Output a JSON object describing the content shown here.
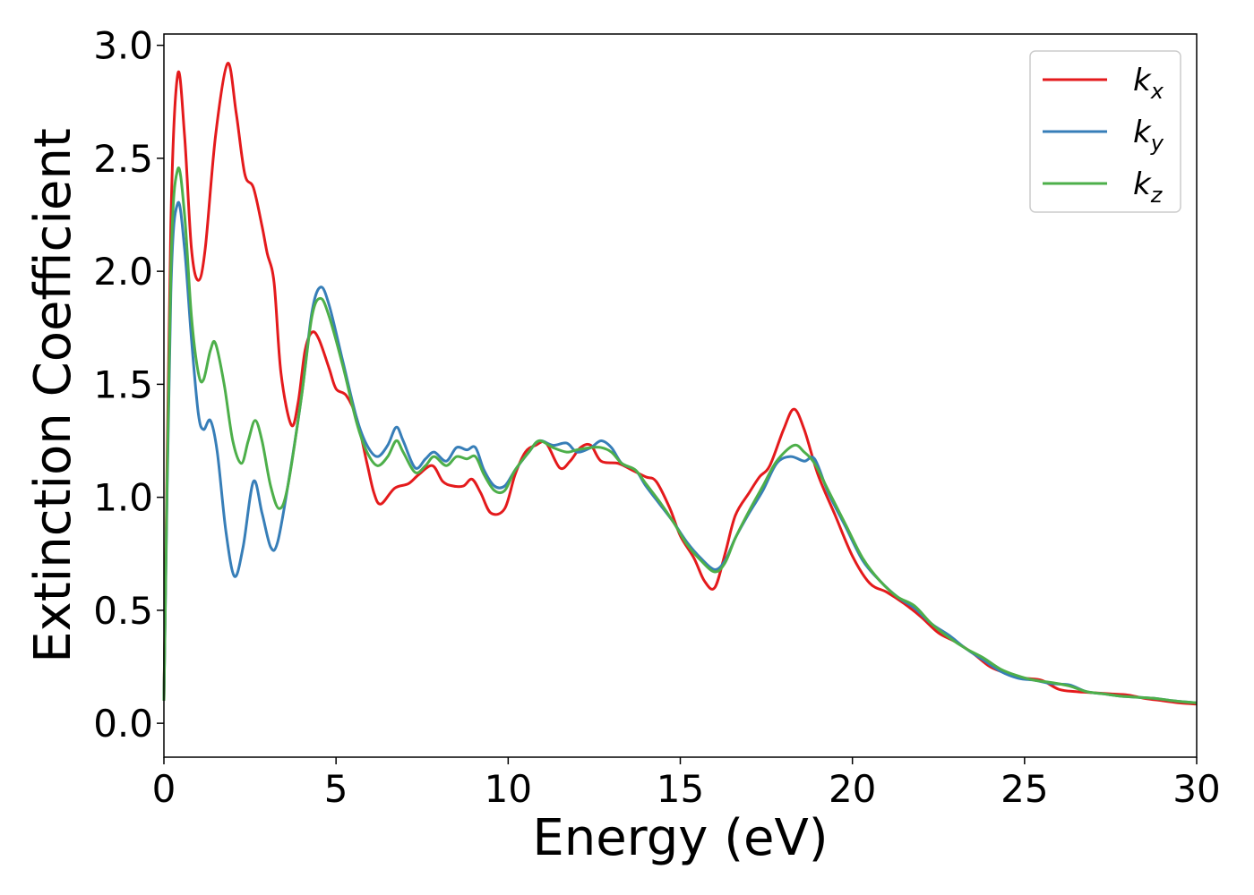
{
  "chart_data": {
    "type": "line",
    "title": "",
    "xlabel": "Energy (eV)",
    "ylabel": "Extinction Coefficient",
    "xlim": [
      0,
      30
    ],
    "ylim": [
      -0.15,
      3.05
    ],
    "xticks": [
      0,
      5,
      10,
      15,
      20,
      25,
      30
    ],
    "xtick_labels": [
      "0",
      "5",
      "10",
      "15",
      "20",
      "25",
      "30"
    ],
    "yticks": [
      0.0,
      0.5,
      1.0,
      1.5,
      2.0,
      2.5,
      3.0
    ],
    "ytick_labels": [
      "0.0",
      "0.5",
      "1.0",
      "1.5",
      "2.0",
      "2.5",
      "3.0"
    ],
    "grid": false,
    "legend_position": "top-right",
    "series": [
      {
        "name": "kx",
        "label_main": "k",
        "label_sub": "x",
        "color": "#e41a1c",
        "points": [
          [
            0,
            0.1
          ],
          [
            0.2,
            2.2
          ],
          [
            0.4,
            2.87
          ],
          [
            0.6,
            2.6
          ],
          [
            0.8,
            2.1
          ],
          [
            1.0,
            1.96
          ],
          [
            1.2,
            2.1
          ],
          [
            1.5,
            2.6
          ],
          [
            1.85,
            2.92
          ],
          [
            2.1,
            2.7
          ],
          [
            2.35,
            2.43
          ],
          [
            2.6,
            2.37
          ],
          [
            2.85,
            2.2
          ],
          [
            3.0,
            2.08
          ],
          [
            3.2,
            1.95
          ],
          [
            3.4,
            1.55
          ],
          [
            3.7,
            1.32
          ],
          [
            3.9,
            1.42
          ],
          [
            4.1,
            1.65
          ],
          [
            4.3,
            1.73
          ],
          [
            4.5,
            1.7
          ],
          [
            4.8,
            1.57
          ],
          [
            5.0,
            1.48
          ],
          [
            5.3,
            1.45
          ],
          [
            5.6,
            1.35
          ],
          [
            5.9,
            1.15
          ],
          [
            6.1,
            1.02
          ],
          [
            6.3,
            0.97
          ],
          [
            6.7,
            1.04
          ],
          [
            7.1,
            1.06
          ],
          [
            7.4,
            1.1
          ],
          [
            7.8,
            1.14
          ],
          [
            8.1,
            1.07
          ],
          [
            8.4,
            1.05
          ],
          [
            8.7,
            1.05
          ],
          [
            8.95,
            1.08
          ],
          [
            9.2,
            1.02
          ],
          [
            9.5,
            0.93
          ],
          [
            9.9,
            0.95
          ],
          [
            10.2,
            1.1
          ],
          [
            10.5,
            1.2
          ],
          [
            10.8,
            1.23
          ],
          [
            11.1,
            1.24
          ],
          [
            11.5,
            1.13
          ],
          [
            11.8,
            1.16
          ],
          [
            12.1,
            1.22
          ],
          [
            12.4,
            1.23
          ],
          [
            12.7,
            1.16
          ],
          [
            13.2,
            1.15
          ],
          [
            13.6,
            1.12
          ],
          [
            14.0,
            1.09
          ],
          [
            14.3,
            1.07
          ],
          [
            14.7,
            0.95
          ],
          [
            15.0,
            0.83
          ],
          [
            15.4,
            0.73
          ],
          [
            15.7,
            0.63
          ],
          [
            16.0,
            0.6
          ],
          [
            16.3,
            0.75
          ],
          [
            16.6,
            0.92
          ],
          [
            17.0,
            1.02
          ],
          [
            17.3,
            1.09
          ],
          [
            17.6,
            1.14
          ],
          [
            18.0,
            1.3
          ],
          [
            18.3,
            1.39
          ],
          [
            18.6,
            1.3
          ],
          [
            19.0,
            1.1
          ],
          [
            19.5,
            0.92
          ],
          [
            20.0,
            0.74
          ],
          [
            20.5,
            0.62
          ],
          [
            21.0,
            0.58
          ],
          [
            21.5,
            0.53
          ],
          [
            22.0,
            0.47
          ],
          [
            22.5,
            0.4
          ],
          [
            23.0,
            0.36
          ],
          [
            23.5,
            0.31
          ],
          [
            24.0,
            0.25
          ],
          [
            24.5,
            0.22
          ],
          [
            25.0,
            0.2
          ],
          [
            25.5,
            0.19
          ],
          [
            26.0,
            0.15
          ],
          [
            26.5,
            0.14
          ],
          [
            27.0,
            0.135
          ],
          [
            27.5,
            0.13
          ],
          [
            28.0,
            0.125
          ],
          [
            28.5,
            0.11
          ],
          [
            29.0,
            0.1
          ],
          [
            29.5,
            0.09
          ],
          [
            30.0,
            0.085
          ]
        ]
      },
      {
        "name": "ky",
        "label_main": "k",
        "label_sub": "y",
        "color": "#377eb8",
        "points": [
          [
            0,
            0.1
          ],
          [
            0.2,
            1.9
          ],
          [
            0.4,
            2.3
          ],
          [
            0.6,
            2.1
          ],
          [
            0.8,
            1.7
          ],
          [
            1.0,
            1.37
          ],
          [
            1.15,
            1.3
          ],
          [
            1.35,
            1.34
          ],
          [
            1.55,
            1.2
          ],
          [
            1.8,
            0.85
          ],
          [
            2.05,
            0.65
          ],
          [
            2.3,
            0.78
          ],
          [
            2.6,
            1.07
          ],
          [
            2.85,
            0.93
          ],
          [
            3.1,
            0.78
          ],
          [
            3.3,
            0.8
          ],
          [
            3.6,
            1.05
          ],
          [
            4.0,
            1.45
          ],
          [
            4.3,
            1.82
          ],
          [
            4.55,
            1.93
          ],
          [
            4.8,
            1.85
          ],
          [
            5.2,
            1.6
          ],
          [
            5.6,
            1.35
          ],
          [
            5.9,
            1.23
          ],
          [
            6.2,
            1.18
          ],
          [
            6.5,
            1.23
          ],
          [
            6.75,
            1.31
          ],
          [
            6.95,
            1.25
          ],
          [
            7.3,
            1.13
          ],
          [
            7.6,
            1.17
          ],
          [
            7.85,
            1.2
          ],
          [
            8.2,
            1.16
          ],
          [
            8.5,
            1.22
          ],
          [
            8.8,
            1.21
          ],
          [
            9.05,
            1.22
          ],
          [
            9.3,
            1.12
          ],
          [
            9.6,
            1.05
          ],
          [
            9.9,
            1.05
          ],
          [
            10.2,
            1.12
          ],
          [
            10.6,
            1.2
          ],
          [
            10.9,
            1.25
          ],
          [
            11.3,
            1.23
          ],
          [
            11.7,
            1.24
          ],
          [
            12.0,
            1.2
          ],
          [
            12.4,
            1.22
          ],
          [
            12.7,
            1.25
          ],
          [
            13.0,
            1.22
          ],
          [
            13.3,
            1.15
          ],
          [
            13.7,
            1.12
          ],
          [
            14.0,
            1.05
          ],
          [
            14.4,
            0.97
          ],
          [
            14.8,
            0.89
          ],
          [
            15.2,
            0.8
          ],
          [
            15.6,
            0.73
          ],
          [
            16.0,
            0.68
          ],
          [
            16.3,
            0.72
          ],
          [
            16.6,
            0.82
          ],
          [
            17.0,
            0.93
          ],
          [
            17.4,
            1.03
          ],
          [
            17.8,
            1.15
          ],
          [
            18.2,
            1.18
          ],
          [
            18.6,
            1.16
          ],
          [
            18.9,
            1.17
          ],
          [
            19.3,
            1.02
          ],
          [
            19.8,
            0.87
          ],
          [
            20.3,
            0.72
          ],
          [
            20.8,
            0.63
          ],
          [
            21.3,
            0.56
          ],
          [
            21.8,
            0.51
          ],
          [
            22.3,
            0.44
          ],
          [
            22.8,
            0.39
          ],
          [
            23.3,
            0.33
          ],
          [
            23.8,
            0.28
          ],
          [
            24.3,
            0.23
          ],
          [
            24.8,
            0.2
          ],
          [
            25.3,
            0.19
          ],
          [
            25.8,
            0.175
          ],
          [
            26.3,
            0.17
          ],
          [
            26.8,
            0.14
          ],
          [
            27.3,
            0.13
          ],
          [
            27.8,
            0.12
          ],
          [
            28.3,
            0.115
          ],
          [
            28.8,
            0.11
          ],
          [
            29.3,
            0.1
          ],
          [
            30.0,
            0.09
          ]
        ]
      },
      {
        "name": "kz",
        "label_main": "k",
        "label_sub": "z",
        "color": "#4daf4a",
        "points": [
          [
            0,
            0.1
          ],
          [
            0.2,
            2.0
          ],
          [
            0.4,
            2.45
          ],
          [
            0.6,
            2.25
          ],
          [
            0.8,
            1.8
          ],
          [
            1.0,
            1.55
          ],
          [
            1.15,
            1.52
          ],
          [
            1.35,
            1.65
          ],
          [
            1.5,
            1.68
          ],
          [
            1.75,
            1.5
          ],
          [
            2.0,
            1.25
          ],
          [
            2.25,
            1.15
          ],
          [
            2.45,
            1.25
          ],
          [
            2.65,
            1.34
          ],
          [
            2.85,
            1.25
          ],
          [
            3.1,
            1.05
          ],
          [
            3.35,
            0.95
          ],
          [
            3.6,
            1.05
          ],
          [
            4.0,
            1.45
          ],
          [
            4.3,
            1.8
          ],
          [
            4.55,
            1.88
          ],
          [
            4.8,
            1.8
          ],
          [
            5.2,
            1.58
          ],
          [
            5.6,
            1.33
          ],
          [
            5.9,
            1.2
          ],
          [
            6.2,
            1.14
          ],
          [
            6.5,
            1.18
          ],
          [
            6.75,
            1.25
          ],
          [
            6.95,
            1.2
          ],
          [
            7.3,
            1.11
          ],
          [
            7.6,
            1.14
          ],
          [
            7.85,
            1.18
          ],
          [
            8.2,
            1.14
          ],
          [
            8.5,
            1.18
          ],
          [
            8.8,
            1.17
          ],
          [
            9.05,
            1.18
          ],
          [
            9.3,
            1.1
          ],
          [
            9.6,
            1.03
          ],
          [
            9.9,
            1.03
          ],
          [
            10.2,
            1.12
          ],
          [
            10.6,
            1.2
          ],
          [
            10.9,
            1.25
          ],
          [
            11.3,
            1.22
          ],
          [
            11.7,
            1.2
          ],
          [
            12.0,
            1.21
          ],
          [
            12.4,
            1.22
          ],
          [
            12.7,
            1.22
          ],
          [
            13.0,
            1.2
          ],
          [
            13.3,
            1.15
          ],
          [
            13.7,
            1.12
          ],
          [
            14.0,
            1.06
          ],
          [
            14.4,
            0.98
          ],
          [
            14.8,
            0.89
          ],
          [
            15.2,
            0.79
          ],
          [
            15.6,
            0.72
          ],
          [
            16.0,
            0.67
          ],
          [
            16.3,
            0.71
          ],
          [
            16.6,
            0.82
          ],
          [
            17.0,
            0.94
          ],
          [
            17.4,
            1.05
          ],
          [
            17.8,
            1.16
          ],
          [
            18.3,
            1.23
          ],
          [
            18.6,
            1.2
          ],
          [
            18.9,
            1.15
          ],
          [
            19.3,
            1.03
          ],
          [
            19.8,
            0.88
          ],
          [
            20.3,
            0.73
          ],
          [
            20.8,
            0.63
          ],
          [
            21.3,
            0.56
          ],
          [
            21.8,
            0.52
          ],
          [
            22.3,
            0.44
          ],
          [
            22.8,
            0.38
          ],
          [
            23.3,
            0.33
          ],
          [
            23.8,
            0.29
          ],
          [
            24.3,
            0.24
          ],
          [
            24.8,
            0.21
          ],
          [
            25.3,
            0.19
          ],
          [
            25.8,
            0.18
          ],
          [
            26.3,
            0.165
          ],
          [
            26.8,
            0.14
          ],
          [
            27.3,
            0.13
          ],
          [
            27.8,
            0.12
          ],
          [
            28.3,
            0.115
          ],
          [
            28.8,
            0.11
          ],
          [
            29.3,
            0.1
          ],
          [
            30.0,
            0.09
          ]
        ]
      }
    ]
  }
}
